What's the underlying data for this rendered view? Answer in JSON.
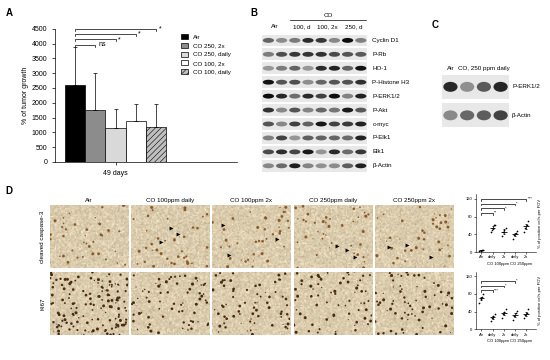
{
  "chart_data": [
    {
      "type": "bar",
      "categories": [
        "49 days"
      ],
      "ylabel": "% of tumor growth",
      "ylim": [
        0,
        4500
      ],
      "yticks": [
        0,
        500,
        1000,
        1500,
        2000,
        2500,
        3000,
        3500,
        4000,
        4500
      ],
      "legend": "upper right",
      "series": [
        {
          "name": "Air",
          "color": "#000000",
          "values": [
            2600
          ],
          "errors": [
            1300
          ]
        },
        {
          "name": "CO 250, 2x",
          "color": "#8c8c8c",
          "values": [
            1750
          ],
          "errors": [
            1250
          ]
        },
        {
          "name": "CO 250, daily",
          "color": "#d9d9d9",
          "values": [
            1150
          ],
          "errors": [
            650
          ]
        },
        {
          "name": "CO 100, 2x",
          "color": "#ffffff",
          "values": [
            1380
          ],
          "errors": [
            570
          ]
        },
        {
          "name": "CO 100, daily",
          "color": "#bfbfbf",
          "values": [
            1180
          ],
          "errors": [
            770
          ]
        }
      ],
      "annotations": [
        {
          "from": "Air",
          "to": "CO 250, 2x",
          "text": "ns"
        },
        {
          "from": "Air",
          "to": "CO 250, daily",
          "text": "*"
        },
        {
          "from": "Air",
          "to": "CO 100, 2x",
          "text": "*"
        },
        {
          "from": "Air",
          "to": "CO 100, daily",
          "text": "*"
        }
      ]
    },
    {
      "type": "scatter",
      "categories": [
        "Air",
        "daily",
        "2x",
        "daily",
        "2x"
      ],
      "groups": [
        {
          "label": "CO 100ppm",
          "categories": [
            1,
            2
          ]
        },
        {
          "label": "CO 250ppm",
          "categories": [
            3,
            4
          ]
        }
      ],
      "ylabel": "% of positive cells per FOV",
      "ylim": [
        0,
        130
      ],
      "yticks": [
        0,
        40,
        80,
        120
      ],
      "color": "#000000",
      "marker": "o",
      "points": [
        [
          2,
          3,
          4,
          5
        ],
        [
          45,
          50,
          55,
          60,
          62
        ],
        [
          35,
          45,
          50,
          55
        ],
        [
          30,
          38,
          42,
          48
        ],
        [
          45,
          55,
          62,
          70
        ]
      ],
      "values": [
        3.5,
        55,
        46,
        40,
        58
      ],
      "errors": [
        1,
        3,
        5,
        4,
        5
      ],
      "annotations": [
        {
          "from": 0,
          "to": 1,
          "text": "**"
        },
        {
          "from": 0,
          "to": 2,
          "text": "*"
        },
        {
          "from": 0,
          "to": 3,
          "text": "*"
        },
        {
          "from": 0,
          "to": 4,
          "text": "***"
        }
      ]
    },
    {
      "type": "scatter",
      "categories": [
        "Air",
        "daily",
        "2x",
        "daily",
        "2x"
      ],
      "groups": [
        {
          "label": "CO 100ppm",
          "categories": [
            1,
            2
          ]
        },
        {
          "label": "CO 250ppm",
          "categories": [
            3,
            4
          ]
        }
      ],
      "ylabel": "% of positive cells per FOV",
      "ylim": [
        0,
        130
      ],
      "yticks": [
        0,
        40,
        80,
        120
      ],
      "color": "#000000",
      "marker": "o",
      "points": [
        [
          60,
          68,
          72,
          80
        ],
        [
          20,
          25,
          30,
          35
        ],
        [
          25,
          35,
          40,
          45
        ],
        [
          22,
          30,
          38,
          42
        ],
        [
          25,
          32,
          38,
          45
        ]
      ],
      "values": [
        70,
        27,
        36,
        33,
        35
      ],
      "errors": [
        4,
        3,
        4,
        4,
        4
      ],
      "annotations": [
        {
          "from": 0,
          "to": 1,
          "text": "***"
        },
        {
          "from": 0,
          "to": 2,
          "text": "*"
        },
        {
          "from": 0,
          "to": 3,
          "text": "*"
        }
      ]
    }
  ],
  "panel_labels": [
    "A",
    "B",
    "C",
    "D"
  ],
  "blot_B": {
    "columns": [
      "Air",
      "100, d",
      "100, 2x",
      "250, d"
    ],
    "group": {
      "label": "CO",
      "columns": [
        1,
        2,
        3
      ]
    },
    "rows": [
      "Cyclin D1",
      "P-Rb",
      "HO-1",
      "P-Histone H3",
      "P-ERK1/2",
      "P-Akt",
      "c-myc",
      "P-Elk1",
      "Elk1",
      "β-Actin"
    ]
  },
  "blot_C": {
    "columns": [
      "Air",
      "CO, 250 ppm daily"
    ],
    "rows": [
      "P-ERK1/2",
      "β-Actin"
    ]
  },
  "images_D": {
    "columns": [
      "Air",
      "CO 100ppm daily",
      "CO 100ppm 2x",
      "CO 250ppm daily",
      "CO 250ppm 2x"
    ],
    "rows": [
      "cleaved caspase-3",
      "Ki67"
    ]
  }
}
